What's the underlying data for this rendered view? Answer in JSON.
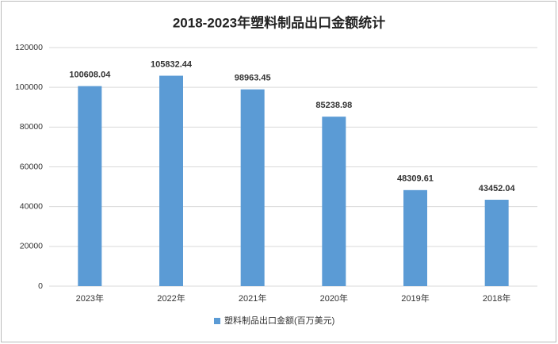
{
  "chart_data": {
    "type": "bar",
    "title": "2018-2023年塑料制品出口金额统计",
    "categories": [
      "2023年",
      "2022年",
      "2021年",
      "2020年",
      "2019年",
      "2018年"
    ],
    "series": [
      {
        "name": "塑料制品出口金额(百万美元)",
        "color": "#5b9bd5",
        "values": [
          100608.04,
          105832.44,
          98963.45,
          85238.98,
          48309.61,
          43452.04
        ]
      }
    ],
    "ylim": [
      0,
      120000
    ],
    "yticks": [
      0,
      20000,
      40000,
      60000,
      80000,
      100000,
      120000
    ],
    "grid": true,
    "legend": "bottom"
  }
}
